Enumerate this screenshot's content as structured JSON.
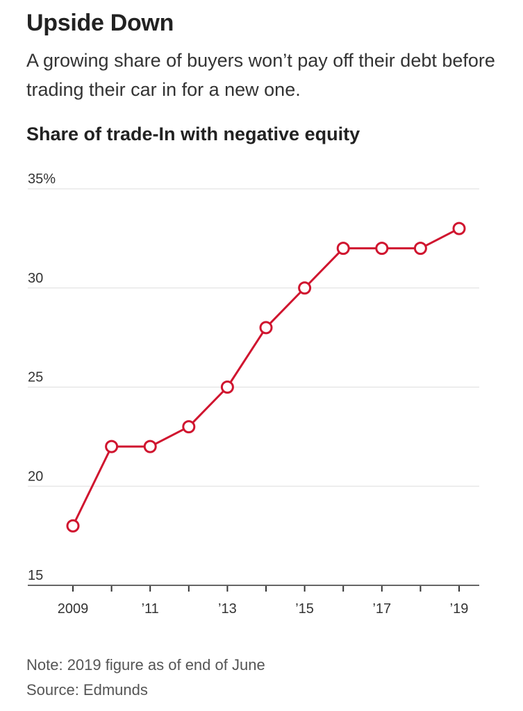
{
  "title": "Upside Down",
  "subtitle": "A growing share of buyers won’t pay off their debt before trading their car in for a new one.",
  "note": "Note: 2019 figure as of end of June",
  "source": "Source: Edmunds",
  "chart_data": {
    "type": "line",
    "title": "Share of trade-In with negative equity",
    "xlabel": "",
    "ylabel": "",
    "x": [
      2009,
      2010,
      2011,
      2012,
      2013,
      2014,
      2015,
      2016,
      2017,
      2018,
      2019
    ],
    "series": [
      {
        "values": [
          18,
          22,
          22,
          23,
          25,
          28,
          30,
          32,
          32,
          32,
          33
        ]
      }
    ],
    "ylim": [
      15,
      35
    ],
    "xlim": [
      2009,
      2019
    ],
    "y_ticks": [
      {
        "value": 35,
        "label": "35%"
      },
      {
        "value": 30,
        "label": "30"
      },
      {
        "value": 25,
        "label": "25"
      },
      {
        "value": 20,
        "label": "20"
      },
      {
        "value": 15,
        "label": "15"
      }
    ],
    "x_ticks": [
      {
        "value": 2009,
        "label": "2009"
      },
      {
        "value": 2010,
        "label": ""
      },
      {
        "value": 2011,
        "label": "’11"
      },
      {
        "value": 2012,
        "label": ""
      },
      {
        "value": 2013,
        "label": "’13"
      },
      {
        "value": 2014,
        "label": ""
      },
      {
        "value": 2015,
        "label": "’15"
      },
      {
        "value": 2016,
        "label": ""
      },
      {
        "value": 2017,
        "label": "’17"
      },
      {
        "value": 2018,
        "label": ""
      },
      {
        "value": 2019,
        "label": "’19"
      }
    ],
    "grid": true,
    "legend": "none",
    "line_color": "#d0152f",
    "marker_fill": "#ffffff"
  }
}
